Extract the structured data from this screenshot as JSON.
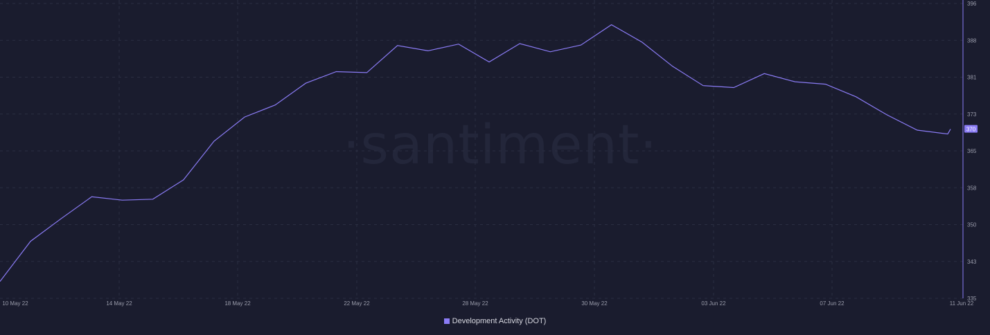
{
  "watermark": "·santiment·",
  "chart_data": {
    "type": "line",
    "title": "",
    "xlabel": "",
    "ylabel": "",
    "x_tick_labels": [
      "10 May 22",
      "14 May 22",
      "18 May 22",
      "22 May 22",
      "28 May 22",
      "30 May 22",
      "03 Jun 22",
      "07 Jun 22",
      "11 Jun 22"
    ],
    "y_tick_labels": [
      "335",
      "343",
      "350",
      "358",
      "365",
      "373",
      "381",
      "388",
      "396"
    ],
    "ylim": [
      335,
      396
    ],
    "grid": true,
    "legend": "bottom-center",
    "current_value_label": "370",
    "series": [
      {
        "name": "Development Activity (DOT)",
        "color": "#8b7cf6",
        "x": [
          "10 May 22",
          "11 May 22",
          "12 May 22",
          "13 May 22",
          "14 May 22",
          "15 May 22",
          "16 May 22",
          "17 May 22",
          "18 May 22",
          "19 May 22",
          "20 May 22",
          "21 May 22",
          "22 May 22",
          "23 May 22",
          "24 May 22",
          "25 May 22",
          "26 May 22",
          "27 May 22",
          "28 May 22",
          "29 May 22",
          "30 May 22",
          "31 May 22",
          "01 Jun 22",
          "02 Jun 22",
          "03 Jun 22",
          "04 Jun 22",
          "05 Jun 22",
          "06 Jun 22",
          "07 Jun 22",
          "08 Jun 22",
          "09 Jun 22",
          "10 Jun 22",
          "11 Jun 22"
        ],
        "values": [
          338.5,
          346.8,
          351.5,
          356.0,
          355.3,
          355.5,
          359.5,
          367.5,
          372.5,
          375.0,
          379.5,
          381.9,
          381.7,
          387.3,
          386.2,
          387.6,
          383.9,
          387.7,
          386.0,
          387.4,
          391.6,
          388.0,
          383.0,
          379.0,
          378.6,
          381.5,
          379.8,
          379.3,
          376.7,
          373.0,
          369.8,
          369.0,
          370.0
        ]
      }
    ]
  }
}
